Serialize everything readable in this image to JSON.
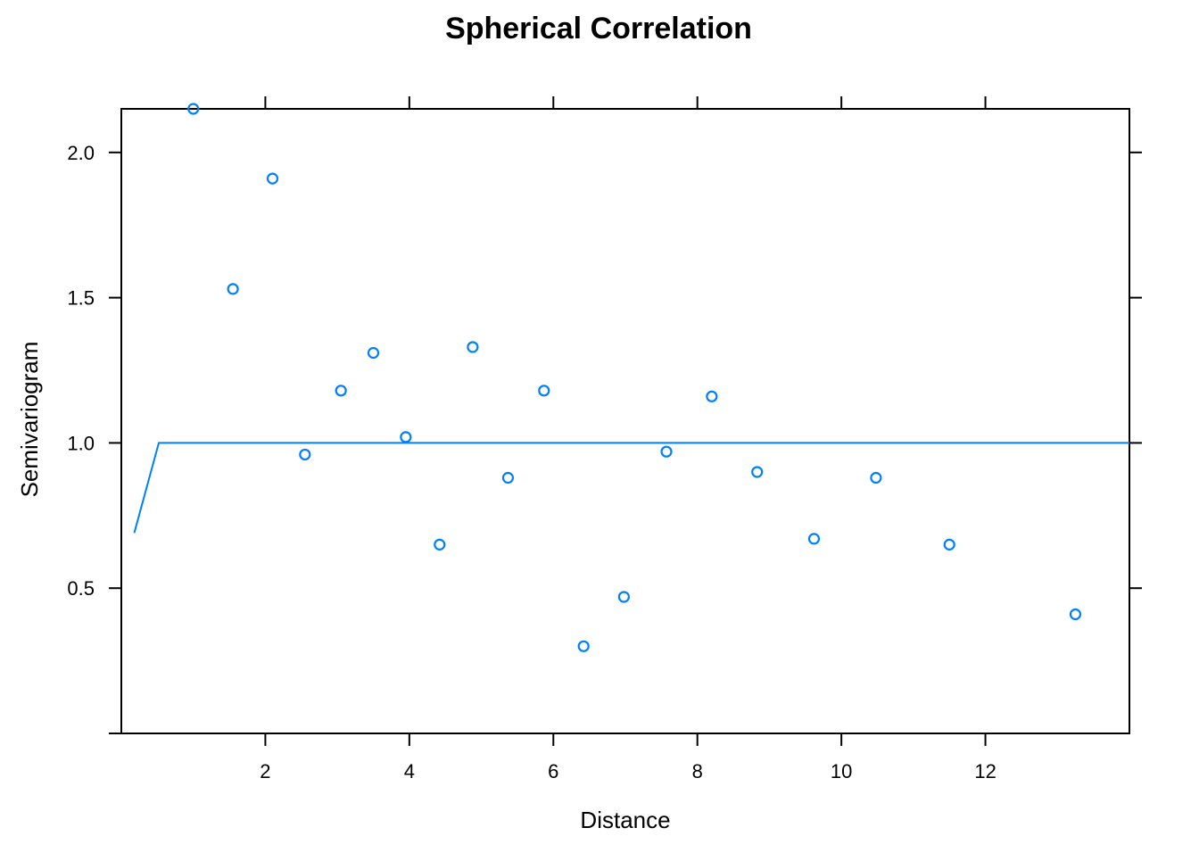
{
  "chart_data": {
    "type": "scatter",
    "title": "Spherical Correlation",
    "xlabel": "Distance",
    "ylabel": "Semivariogram",
    "xlim": [
      0.0,
      14.0
    ],
    "ylim": [
      0.0,
      2.15
    ],
    "xticks": [
      2,
      4,
      6,
      8,
      10,
      12
    ],
    "xtick_labels": [
      "2",
      "4",
      "6",
      "8",
      "10",
      "12"
    ],
    "yticks": [
      0.5,
      1.0,
      1.5,
      2.0
    ],
    "ytick_labels": [
      "0.5",
      "1.0",
      "1.5",
      "2.0"
    ],
    "grid": false,
    "color": "#0080ff",
    "series": [
      {
        "kind": "points",
        "x": [
          1.0,
          1.55,
          2.1,
          2.55,
          3.05,
          3.5,
          3.95,
          4.42,
          4.88,
          5.37,
          5.87,
          6.42,
          6.98,
          7.57,
          8.2,
          8.83,
          9.62,
          10.48,
          11.5,
          13.25
        ],
        "y": [
          2.15,
          1.53,
          1.91,
          0.96,
          1.18,
          1.31,
          1.02,
          0.65,
          1.33,
          0.88,
          1.18,
          0.3,
          0.47,
          0.97,
          1.16,
          0.9,
          0.67,
          0.88,
          0.65,
          0.41
        ]
      },
      {
        "kind": "line",
        "x": [
          0.18,
          0.52,
          0.53,
          14.0
        ],
        "y": [
          0.69,
          1.0,
          1.0,
          1.0
        ]
      }
    ]
  }
}
